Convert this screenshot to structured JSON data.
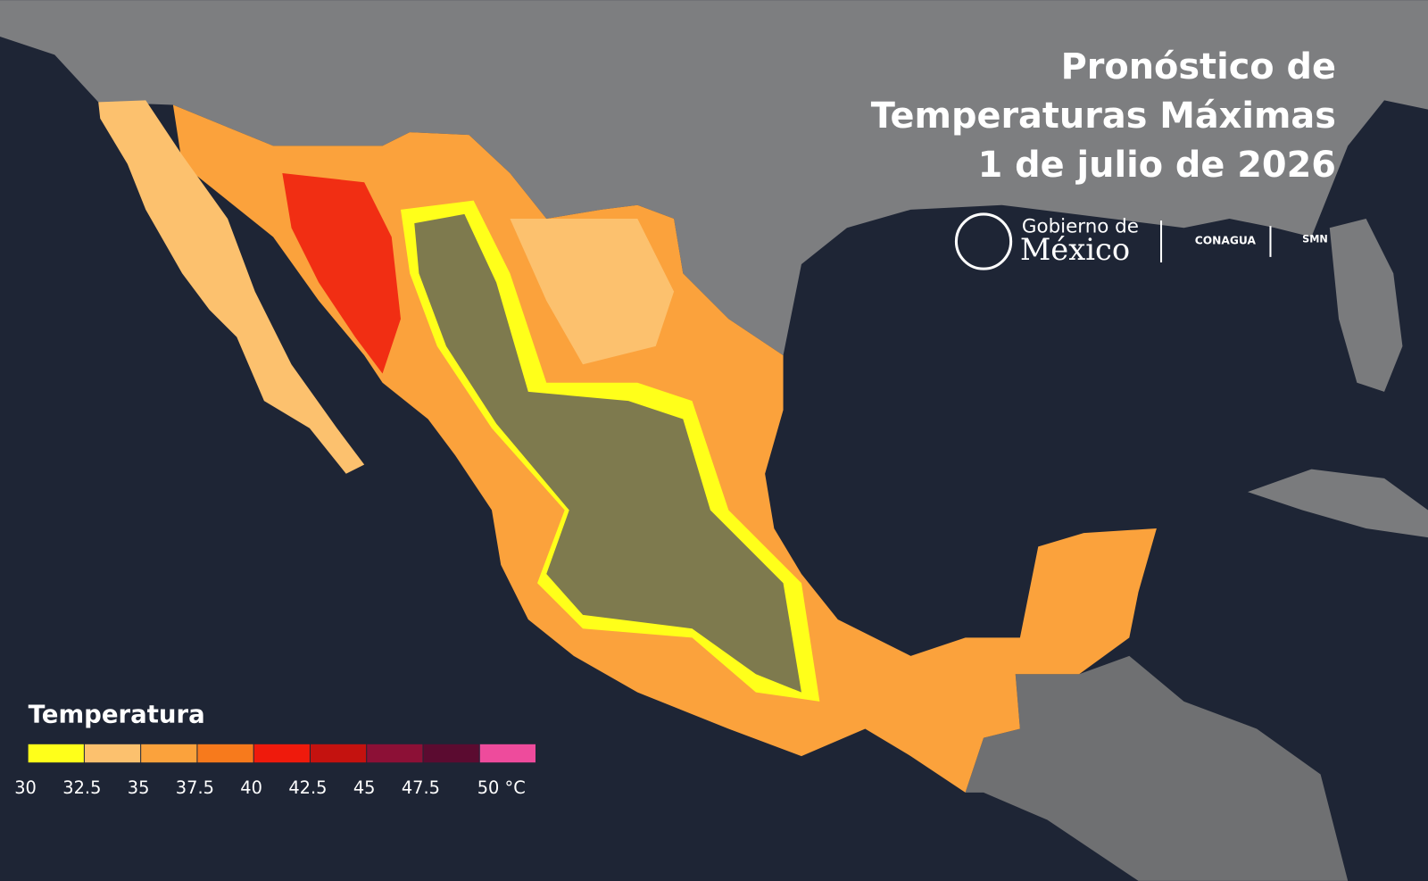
{
  "header": {
    "title_lines": [
      "Pronóstico de",
      "Temperaturas Máximas",
      "1 de julio de 2026"
    ]
  },
  "logos": {
    "gobierno_line1": "Gobierno de",
    "gobierno_line2": "México",
    "conagua": "CONAGUA",
    "smn": "SMN"
  },
  "legend": {
    "title": "Temperatura",
    "colors": [
      "#ffff1a",
      "#fcc16e",
      "#fba23c",
      "#f77a1c",
      "#ef1a0c",
      "#c4120f",
      "#8c1036",
      "#5b0b30",
      "#ee4b9c"
    ],
    "labels": [
      "30",
      "32.5",
      "35",
      "37.5",
      "40",
      "42.5",
      "45",
      "47.5",
      "50 °C"
    ]
  }
}
